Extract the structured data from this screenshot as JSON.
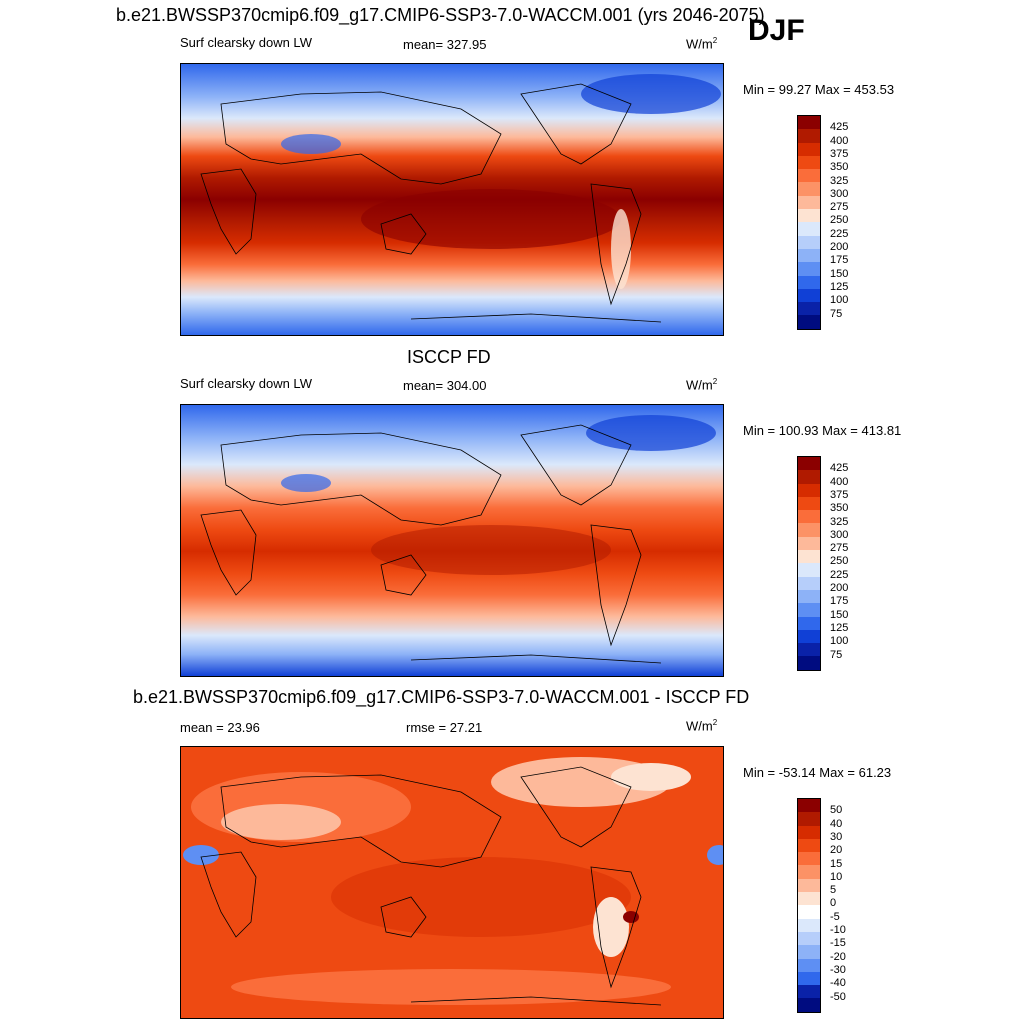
{
  "season": "DJF",
  "panels": [
    {
      "title": "b.e21.BWSSP370cmip6.f09_g17.CMIP6-SSP3-7.0-WACCM.001 (yrs 2046-2075)",
      "left_label": "Surf clearsky down LW",
      "center_label": "mean= 327.95",
      "units": "W/m",
      "units_sup": "2",
      "minmax": "Min =  99.27 Max = 453.53",
      "colorbar": {
        "labels": [
          "425",
          "400",
          "375",
          "350",
          "325",
          "300",
          "275",
          "250",
          "225",
          "200",
          "175",
          "150",
          "125",
          "100",
          "75"
        ],
        "colors": [
          "#8b0000",
          "#b01a00",
          "#d62c00",
          "#ee4a12",
          "#fa6d3a",
          "#fc9266",
          "#fdb99a",
          "#fde3d2",
          "#dbe8fb",
          "#b6cefa",
          "#8db2f7",
          "#5e8ff3",
          "#3068ec",
          "#1040d6",
          "#0a22a8",
          "#000c80"
        ]
      },
      "map_type": "model"
    },
    {
      "title": "ISCCP FD",
      "left_label": "Surf clearsky down LW",
      "center_label": "mean= 304.00",
      "units": "W/m",
      "units_sup": "2",
      "minmax": "Min = 100.93 Max = 413.81",
      "colorbar": {
        "labels": [
          "425",
          "400",
          "375",
          "350",
          "325",
          "300",
          "275",
          "250",
          "225",
          "200",
          "175",
          "150",
          "125",
          "100",
          "75"
        ],
        "colors": [
          "#8b0000",
          "#b01a00",
          "#d62c00",
          "#ee4a12",
          "#fa6d3a",
          "#fc9266",
          "#fdb99a",
          "#fde3d2",
          "#dbe8fb",
          "#b6cefa",
          "#8db2f7",
          "#5e8ff3",
          "#3068ec",
          "#1040d6",
          "#0a22a8",
          "#000c80"
        ]
      },
      "map_type": "obs"
    },
    {
      "title": "b.e21.BWSSP370cmip6.f09_g17.CMIP6-SSP3-7.0-WACCM.001 - ISCCP FD",
      "left_label": "mean =  23.96",
      "center_label": "rmse =  27.21",
      "units": "W/m",
      "units_sup": "2",
      "minmax": "Min = -53.14 Max =  61.23",
      "colorbar": {
        "labels": [
          "50",
          "40",
          "30",
          "20",
          "15",
          "10",
          "5",
          "0",
          "-5",
          "-10",
          "-15",
          "-20",
          "-30",
          "-40",
          "-50"
        ],
        "colors": [
          "#8b0000",
          "#b01a00",
          "#d62c00",
          "#ee4a12",
          "#fa6d3a",
          "#fc9266",
          "#fdb99a",
          "#fde3d2",
          "#ffffff",
          "#dbe8fb",
          "#b6cefa",
          "#8db2f7",
          "#5e8ff3",
          "#3068ec",
          "#0a22a8",
          "#000c80"
        ]
      },
      "map_type": "diff"
    }
  ]
}
